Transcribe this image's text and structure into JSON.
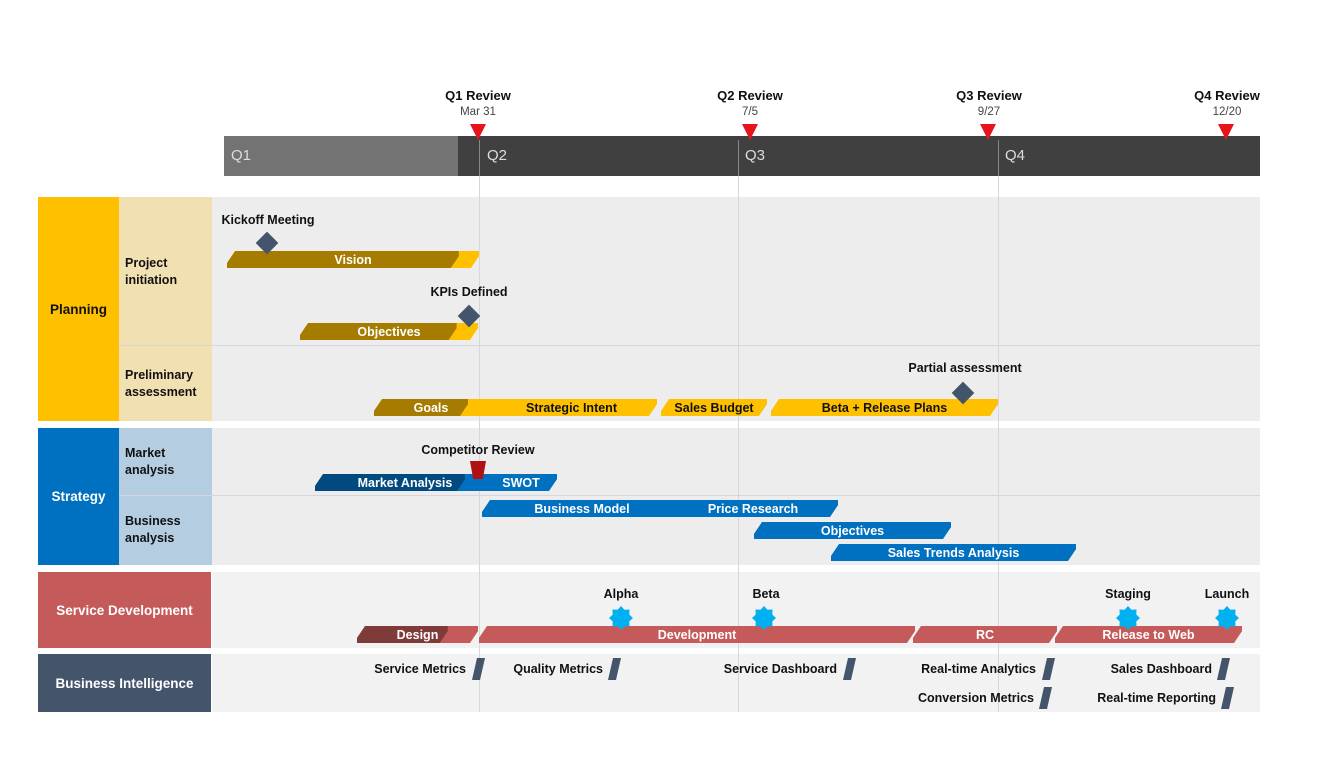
{
  "timeline": {
    "quarters": [
      "Q1",
      "Q2",
      "Q3",
      "Q4"
    ],
    "reviews": [
      {
        "label": "Q1 Review",
        "date": "Mar 31"
      },
      {
        "label": "Q2 Review",
        "date": "7/5"
      },
      {
        "label": "Q3 Review",
        "date": "9/27"
      },
      {
        "label": "Q4 Review",
        "date": "12/20"
      }
    ]
  },
  "lanes": {
    "planning": {
      "name": "Planning",
      "color": "#FFC000",
      "sub": [
        "Project initiation",
        "Preliminary assessment"
      ]
    },
    "strategy": {
      "name": "Strategy",
      "color": "#0070C0",
      "sub": [
        "Market analysis",
        "Business analysis"
      ]
    },
    "service": {
      "name": "Service Development",
      "color": "#C55A5A"
    },
    "bi": {
      "name": "Business Intelligence",
      "color": "#44546A"
    }
  },
  "tasks": {
    "vision": {
      "label": "Vision",
      "progress": 92
    },
    "objectives1": {
      "label": "Objectives",
      "progress": 88
    },
    "goals": {
      "label": "Goals",
      "progress": 100
    },
    "strategic_intent": {
      "label": "Strategic Intent",
      "progress": 0
    },
    "sales_budget": {
      "label": "Sales Budget",
      "progress": 0
    },
    "beta_release": {
      "label": "Beta + Release Plans",
      "progress": 0
    },
    "market_analysis": {
      "label": "Market Analysis",
      "progress": 100
    },
    "swot": {
      "label": "SWOT",
      "progress": 0
    },
    "business_model": {
      "label": "Business Model",
      "progress": 0
    },
    "price_research": {
      "label": "Price Research",
      "progress": 0
    },
    "objectives2": {
      "label": "Objectives",
      "progress": 0
    },
    "sales_trends": {
      "label": "Sales Trends Analysis",
      "progress": 0
    },
    "design": {
      "label": "Design",
      "progress": 75
    },
    "development": {
      "label": "Development",
      "progress": 0
    },
    "rc": {
      "label": "RC",
      "progress": 0
    },
    "release_web": {
      "label": "Release to Web",
      "progress": 0
    }
  },
  "milestones": {
    "kickoff": "Kickoff Meeting",
    "kpis": "KPIs Defined",
    "partial": "Partial assessment",
    "competitor": "Competitor Review",
    "alpha": "Alpha",
    "beta": "Beta",
    "staging": "Staging",
    "launch": "Launch"
  },
  "bi_items": [
    "Service Metrics",
    "Quality Metrics",
    "Service Dashboard",
    "Real-time Analytics",
    "Sales Dashboard",
    "Conversion Metrics",
    "Real-time Reporting"
  ]
}
